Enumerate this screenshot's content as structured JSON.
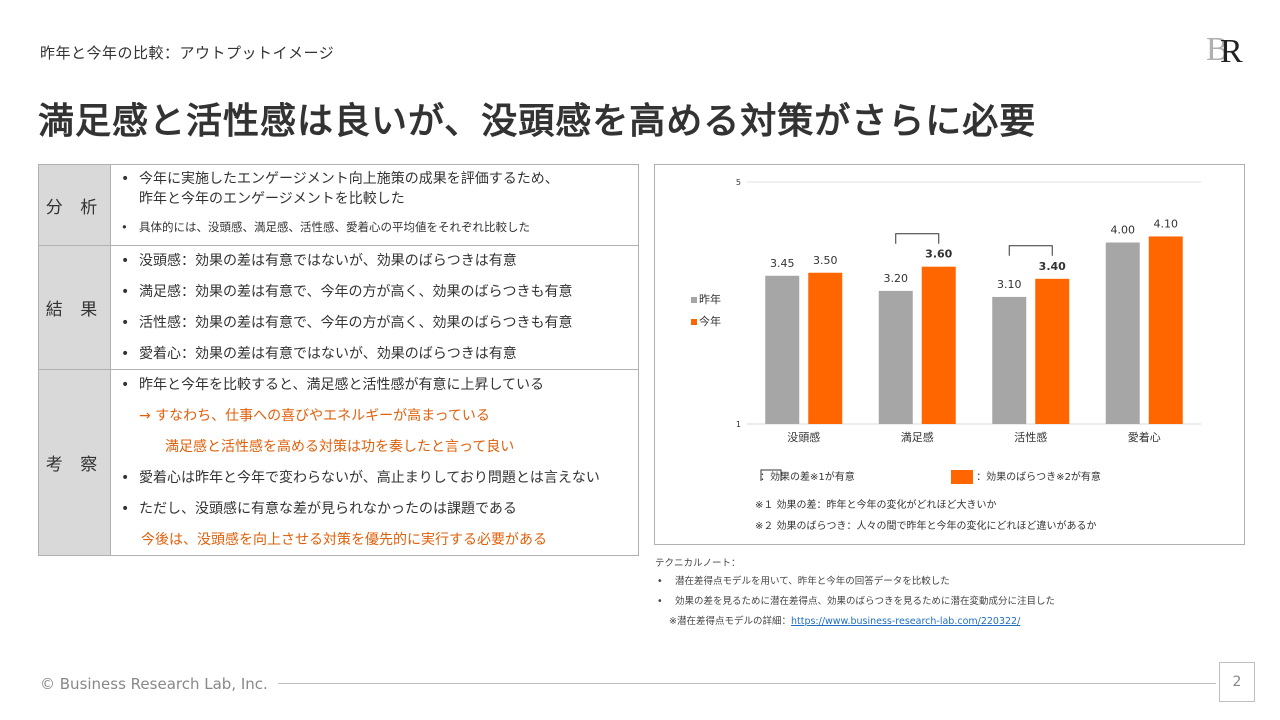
{
  "header": {
    "breadcrumb": "昨年と今年の比較：アウトプットイメージ",
    "title": "満足感と活性感は良いが、没頭感を高める対策がさらに必要",
    "logo_text": "BR"
  },
  "summary": {
    "analysis": {
      "label": "分 析",
      "line1": "今年に実施したエンゲージメント向上施策の成果を評価するため、",
      "line2": "昨年と今年のエンゲージメントを比較した",
      "line3": "具体的には、没頭感、満足感、活性感、愛着心の平均値をそれぞれ比較した"
    },
    "result": {
      "label": "結 果",
      "items": [
        "没頭感：効果の差は有意ではないが、効果のばらつきは有意",
        "満足感：効果の差は有意で、今年の方が高く、効果のばらつきも有意",
        "活性感：効果の差は有意で、今年の方が高く、効果のばらつきも有意",
        "愛着心：効果の差は有意ではないが、効果のばらつきは有意"
      ]
    },
    "discussion": {
      "label": "考 察",
      "line1": "昨年と今年を比較すると、満足感と活性感が有意に上昇している",
      "line2": "→ すなわち、仕事への喜びやエネルギーが高まっている",
      "line3": "満足感と活性感を高める対策は功を奏したと言って良い",
      "line4": "愛着心は昨年と今年で変わらないが、高止まりしており問題とは言えない",
      "line5": "ただし、没頭感に有意な差が見られなかったのは課題である",
      "line6": "今後は、没頭感を向上させる対策を優先的に実行する必要がある"
    }
  },
  "chart_data": {
    "type": "bar",
    "categories": [
      "没頭感",
      "満足感",
      "活性感",
      "愛着心"
    ],
    "series": [
      {
        "name": "昨年",
        "values": [
          3.45,
          3.2,
          3.1,
          4.0
        ],
        "color": "#a6a6a6"
      },
      {
        "name": "今年",
        "values": [
          3.5,
          3.6,
          3.4,
          4.1
        ],
        "color": "#ff6600"
      }
    ],
    "value_labels": {
      "prev": [
        "3.45",
        "3.20",
        "3.10",
        "4.00"
      ],
      "curr": [
        "3.50",
        "3.60",
        "3.40",
        "4.10"
      ]
    },
    "bold_current": [
      false,
      true,
      true,
      false
    ],
    "significant_difference": [
      false,
      true,
      true,
      false
    ],
    "ylim": [
      1,
      5
    ],
    "y_ticks": [
      "5",
      "1"
    ],
    "legend_position": "left",
    "gridlines": true
  },
  "chart_legend": {
    "bracket_label": "：効果の差※1が有意",
    "variance_label": "：効果のばらつき※2が有意",
    "note1": "※１ 効果の差：昨年と今年の変化がどれほど大きいか",
    "note2": "※２ 効果のばらつき：人々の間で昨年と今年の変化にどれほど違いがあるか"
  },
  "tech_notes": {
    "heading": "テクニカルノート：",
    "item1": "潜在差得点モデルを用いて、昨年と今年の回答データを比較した",
    "item2": "効果の差を見るために潜在差得点、効果のばらつきを見るために潜在変動成分に注目した",
    "detail_prefix": "※潜在差得点モデルの詳細：",
    "detail_link": "https://www.business-research-lab.com/220322/"
  },
  "footer": {
    "copyright": "© Business Research Lab, Inc.",
    "page": "2"
  }
}
